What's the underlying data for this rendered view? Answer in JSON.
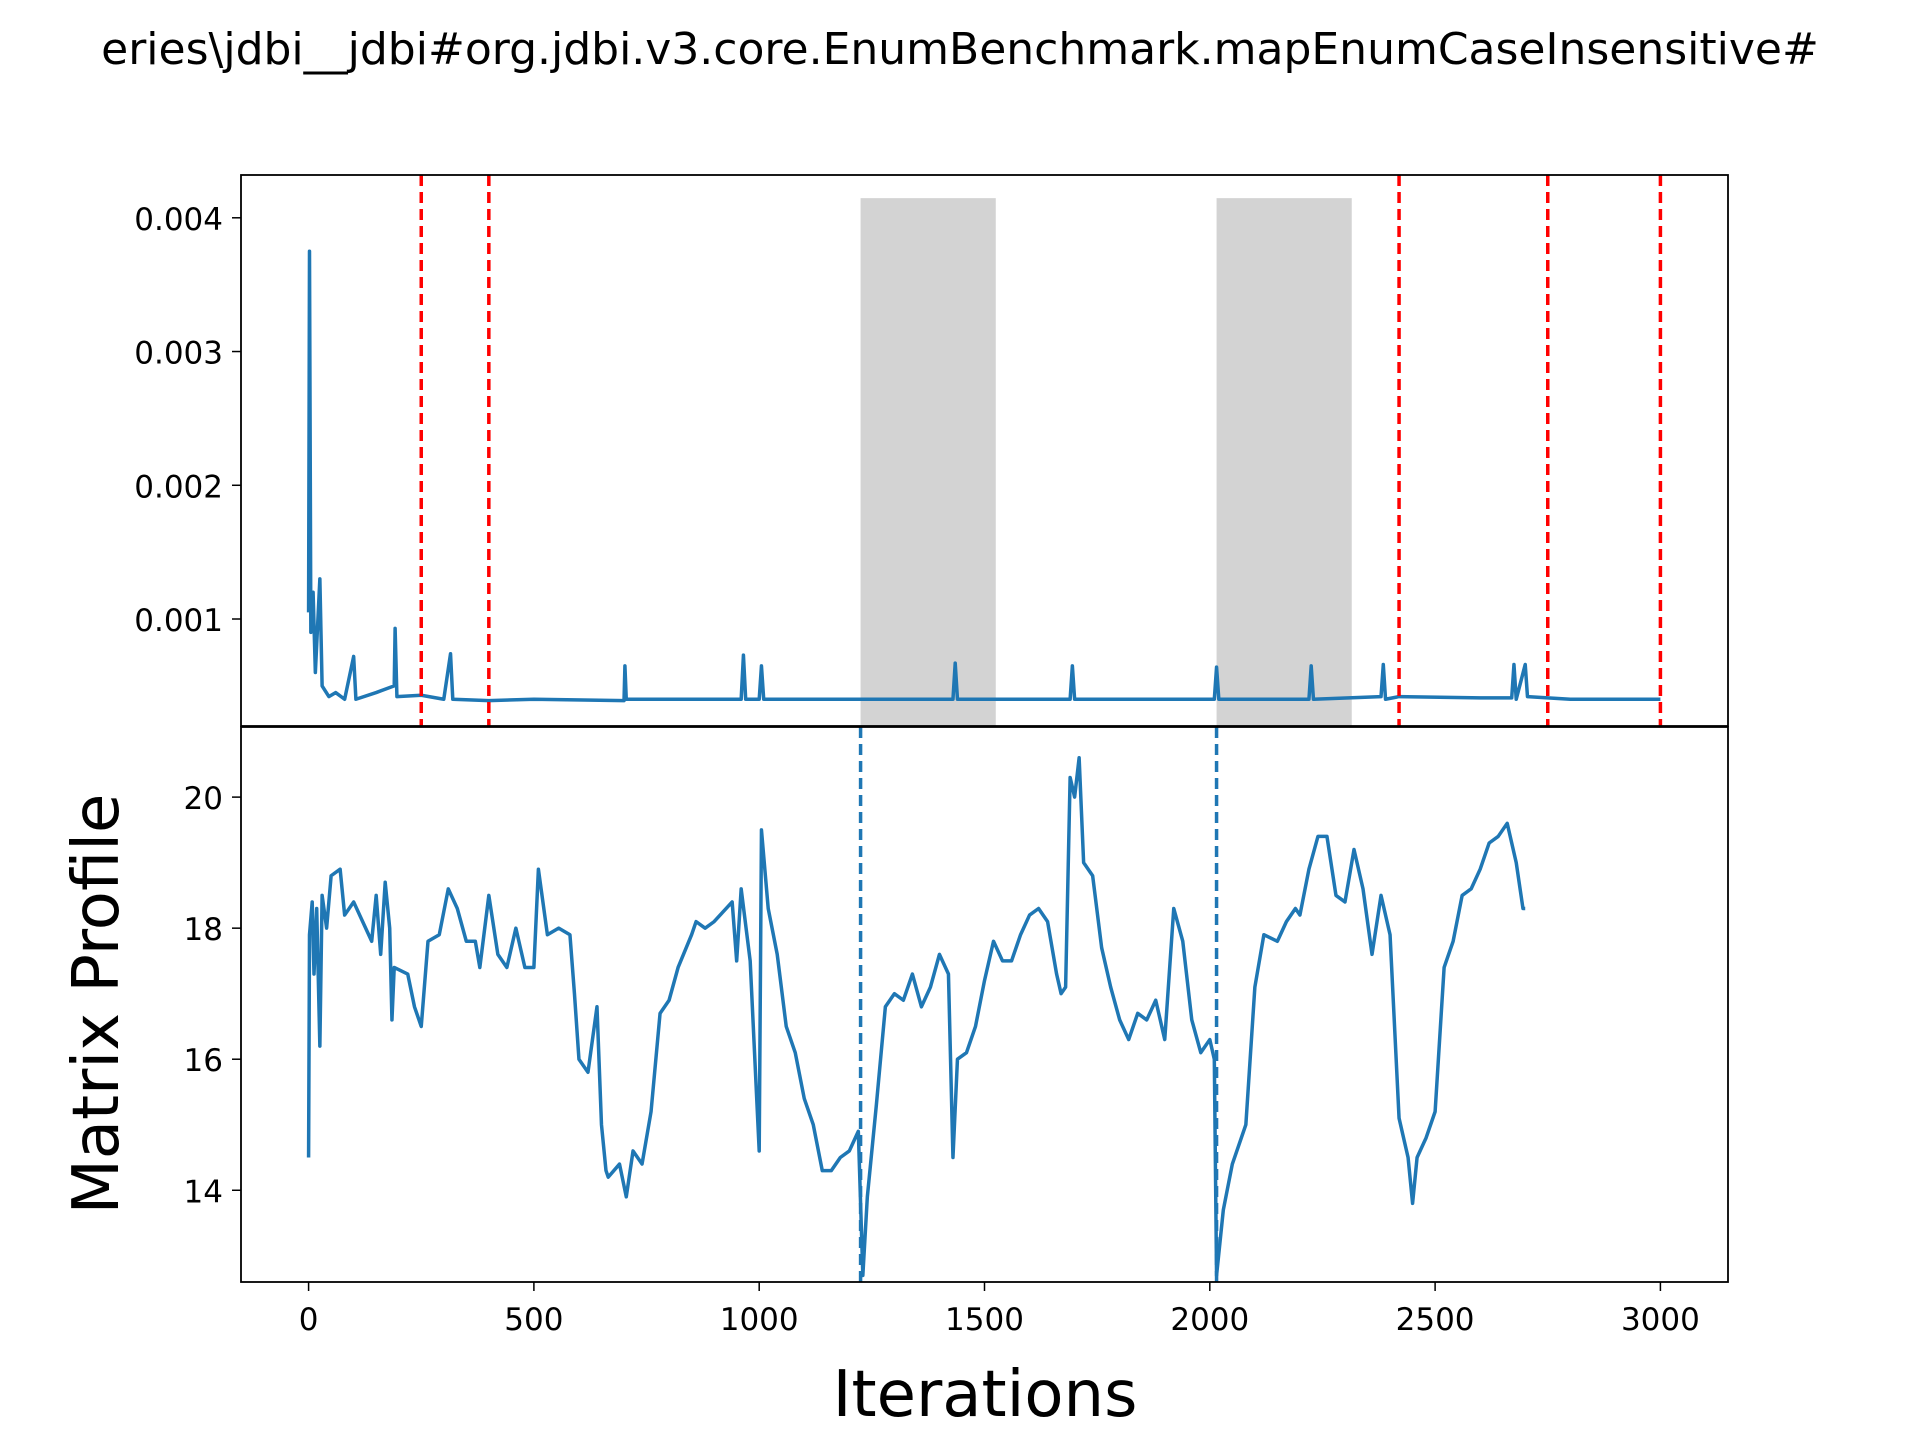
{
  "chart_data": [
    {
      "type": "line",
      "title": "eries\\jdbi__jdbi#org.jdbi.v3.core.EnumBenchmark.mapEnumCaseInsensitive#",
      "color": "#1f77b4",
      "x": [
        0,
        2,
        5,
        10,
        15,
        25,
        30,
        45,
        60,
        80,
        100,
        105,
        150,
        190,
        192,
        196,
        250,
        300,
        315,
        320,
        400,
        500,
        700,
        702,
        705,
        960,
        965,
        970,
        1000,
        1005,
        1010,
        1430,
        1435,
        1440,
        1690,
        1695,
        1700,
        2010,
        2015,
        2020,
        2220,
        2225,
        2230,
        2380,
        2385,
        2390,
        2420,
        2600,
        2670,
        2675,
        2680,
        2700,
        2705,
        2750,
        2800,
        3000
      ],
      "values": [
        0.00105,
        0.00375,
        0.0009,
        0.0012,
        0.0006,
        0.0013,
        0.0005,
        0.00042,
        0.00045,
        0.0004,
        0.00072,
        0.0004,
        0.00045,
        0.0005,
        0.00093,
        0.00042,
        0.00043,
        0.0004,
        0.00074,
        0.0004,
        0.00039,
        0.0004,
        0.00039,
        0.00065,
        0.0004,
        0.0004,
        0.00073,
        0.0004,
        0.0004,
        0.00065,
        0.0004,
        0.0004,
        0.00067,
        0.0004,
        0.0004,
        0.00065,
        0.0004,
        0.0004,
        0.00064,
        0.0004,
        0.0004,
        0.00065,
        0.0004,
        0.00042,
        0.00066,
        0.0004,
        0.00042,
        0.00041,
        0.00041,
        0.00066,
        0.0004,
        0.00066,
        0.00042,
        0.00041,
        0.0004,
        0.0004
      ],
      "xlim": [
        -150,
        3150
      ],
      "ylim": [
        0.0002,
        0.00432
      ],
      "yticks": [
        0.001,
        0.002,
        0.003,
        0.004
      ],
      "vlines": [
        250,
        400,
        2420,
        2750,
        3000
      ],
      "vline_color": "#ff0000",
      "spans": [
        [
          1225,
          1525
        ],
        [
          2015,
          2315
        ]
      ],
      "span_color": "#d3d3d3"
    },
    {
      "type": "line",
      "xlabel": "Iterations",
      "ylabel": "Matrix Profile",
      "color": "#1f77b4",
      "x": [
        0,
        2,
        8,
        12,
        18,
        25,
        30,
        40,
        50,
        70,
        80,
        100,
        120,
        140,
        150,
        160,
        170,
        180,
        185,
        190,
        220,
        235,
        250,
        265,
        290,
        310,
        330,
        350,
        370,
        380,
        400,
        420,
        440,
        460,
        480,
        500,
        510,
        530,
        555,
        580,
        590,
        600,
        620,
        640,
        650,
        660,
        665,
        690,
        705,
        720,
        740,
        760,
        780,
        800,
        820,
        850,
        860,
        880,
        900,
        940,
        950,
        960,
        980,
        1000,
        1005,
        1020,
        1040,
        1060,
        1080,
        1100,
        1120,
        1140,
        1160,
        1180,
        1200,
        1220,
        1230,
        1240,
        1260,
        1280,
        1300,
        1320,
        1340,
        1360,
        1380,
        1400,
        1420,
        1430,
        1440,
        1460,
        1480,
        1500,
        1520,
        1540,
        1560,
        1580,
        1600,
        1620,
        1640,
        1660,
        1670,
        1680,
        1690,
        1700,
        1710,
        1720,
        1740,
        1760,
        1780,
        1800,
        1820,
        1840,
        1860,
        1880,
        1900,
        1920,
        1940,
        1960,
        1980,
        2000,
        2010,
        2015,
        2030,
        2050,
        2080,
        2100,
        2120,
        2150,
        2170,
        2190,
        2200,
        2220,
        2240,
        2260,
        2280,
        2300,
        2320,
        2340,
        2360,
        2380,
        2400,
        2410,
        2420,
        2440,
        2450,
        2460,
        2480,
        2500,
        2520,
        2540,
        2560,
        2580,
        2600,
        2620,
        2640,
        2660,
        2680,
        2695,
        2700
      ],
      "values": [
        14.5,
        17.9,
        18.4,
        17.3,
        18.3,
        16.2,
        18.5,
        18.0,
        18.8,
        18.9,
        18.2,
        18.4,
        18.1,
        17.8,
        18.5,
        17.6,
        18.7,
        18.0,
        16.6,
        17.4,
        17.3,
        16.8,
        16.5,
        17.8,
        17.9,
        18.6,
        18.3,
        17.8,
        17.8,
        17.4,
        18.5,
        17.6,
        17.4,
        18.0,
        17.4,
        17.4,
        18.9,
        17.9,
        18.0,
        17.9,
        17.0,
        16.0,
        15.8,
        16.8,
        15.0,
        14.3,
        14.2,
        14.4,
        13.9,
        14.6,
        14.4,
        15.2,
        16.7,
        16.9,
        17.4,
        17.9,
        18.1,
        18.0,
        18.1,
        18.4,
        17.5,
        18.6,
        17.5,
        14.6,
        19.5,
        18.3,
        17.6,
        16.5,
        16.1,
        15.4,
        15.0,
        14.3,
        14.3,
        14.5,
        14.6,
        14.9,
        12.7,
        13.9,
        15.3,
        16.8,
        17.0,
        16.9,
        17.3,
        16.8,
        17.1,
        17.6,
        17.3,
        14.5,
        16.0,
        16.1,
        16.5,
        17.2,
        17.8,
        17.5,
        17.5,
        17.9,
        18.2,
        18.3,
        18.1,
        17.3,
        17.0,
        17.1,
        20.3,
        20.0,
        20.6,
        19.0,
        18.8,
        17.7,
        17.1,
        16.6,
        16.3,
        16.7,
        16.6,
        16.9,
        16.3,
        18.3,
        17.8,
        16.6,
        16.1,
        16.3,
        16.0,
        12.7,
        13.7,
        14.4,
        15.0,
        17.1,
        17.9,
        17.8,
        18.1,
        18.3,
        18.2,
        18.9,
        19.4,
        19.4,
        18.5,
        18.4,
        19.2,
        18.6,
        17.6,
        18.5,
        17.9,
        16.5,
        15.1,
        14.5,
        13.8,
        14.5,
        14.8,
        15.2,
        17.4,
        17.8,
        18.5,
        18.6,
        18.9,
        19.3,
        19.4,
        19.6,
        19.0,
        18.3,
        18.3
      ],
      "xlim": [
        -150,
        3150
      ],
      "ylim": [
        12.6,
        21.07
      ],
      "xticks": [
        0,
        500,
        1000,
        1500,
        2000,
        2500,
        3000
      ],
      "yticks": [
        14,
        16,
        18,
        20
      ],
      "vlines": [
        1225,
        2015
      ],
      "vline_color": "#1f77b4"
    }
  ]
}
